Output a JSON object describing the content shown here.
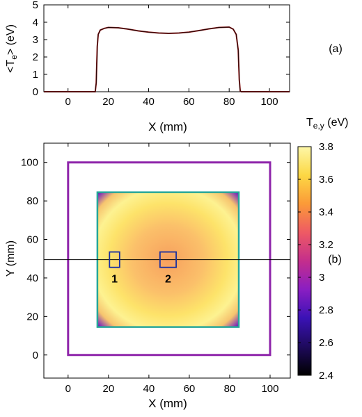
{
  "chart_data": [
    {
      "type": "line",
      "panel_label": "(a)",
      "xlabel": "X (mm)",
      "ylabel": "<T",
      "ylabel_sub": "e",
      "ylabel_tail": "> (eV)",
      "xlim": [
        -12,
        110
      ],
      "ylim": [
        0,
        5
      ],
      "xticks": [
        0,
        20,
        40,
        60,
        80,
        100
      ],
      "yticks": [
        0,
        1,
        2,
        3,
        4,
        5
      ],
      "series": [
        {
          "color": "#8b1a1a",
          "x": [
            -12,
            10,
            13.5,
            14,
            14.5,
            15,
            16,
            18,
            20,
            25,
            30,
            35,
            40,
            45,
            50,
            55,
            60,
            65,
            70,
            75,
            80,
            82,
            83.5,
            84.5,
            85,
            85.5,
            86,
            90,
            110
          ],
          "y": [
            0,
            0,
            0,
            0.5,
            2.6,
            3.3,
            3.55,
            3.65,
            3.7,
            3.68,
            3.6,
            3.5,
            3.43,
            3.38,
            3.36,
            3.38,
            3.43,
            3.52,
            3.62,
            3.7,
            3.72,
            3.6,
            3.3,
            2.4,
            0.7,
            0.05,
            0,
            0,
            0
          ]
        }
      ]
    },
    {
      "type": "heatmap",
      "panel_label": "(b)",
      "xlabel": "X (mm)",
      "ylabel": "Y (mm)",
      "xlim": [
        -12,
        110
      ],
      "ylim": [
        -12,
        110
      ],
      "xticks": [
        0,
        20,
        40,
        60,
        80,
        100
      ],
      "yticks": [
        0,
        20,
        40,
        60,
        80,
        100
      ],
      "colorbar": {
        "title": "T",
        "title_sub": "e,y",
        "title_tail": " (eV)",
        "min": 2.4,
        "max": 3.8,
        "ticks": [
          "3.8",
          "3.6",
          "3.4",
          "3.2",
          "3",
          "2.8",
          "2.6",
          "2.4"
        ],
        "tick_values": [
          3.8,
          3.6,
          3.4,
          3.2,
          3.0,
          2.8,
          2.6,
          2.4
        ],
        "colormap": [
          "#000000",
          "#1e0a5c",
          "#3a12b5",
          "#8a1ec2",
          "#c42e8c",
          "#ee5a64",
          "#fb9a38",
          "#fcd844",
          "#fdf7a8"
        ]
      },
      "outer_square": {
        "x": [
          0,
          100
        ],
        "y": [
          0,
          100
        ],
        "color": "#8e24aa"
      },
      "inner_square": {
        "x": [
          14.5,
          84.5
        ],
        "y": [
          14.5,
          84.5
        ],
        "color": "#26a69a"
      },
      "field": {
        "center_value": 3.45,
        "peak_value": 3.75,
        "corner_value": 2.5
      },
      "horizontal_line_y": 49.5,
      "boxes": [
        {
          "label": "1",
          "x": [
            20.5,
            25.5
          ],
          "y": [
            45.5,
            53.5
          ],
          "color": "#1a2fa0"
        },
        {
          "label": "2",
          "x": [
            45.5,
            53.5
          ],
          "y": [
            45.5,
            53.5
          ],
          "color": "#1a2fa0"
        }
      ]
    }
  ]
}
